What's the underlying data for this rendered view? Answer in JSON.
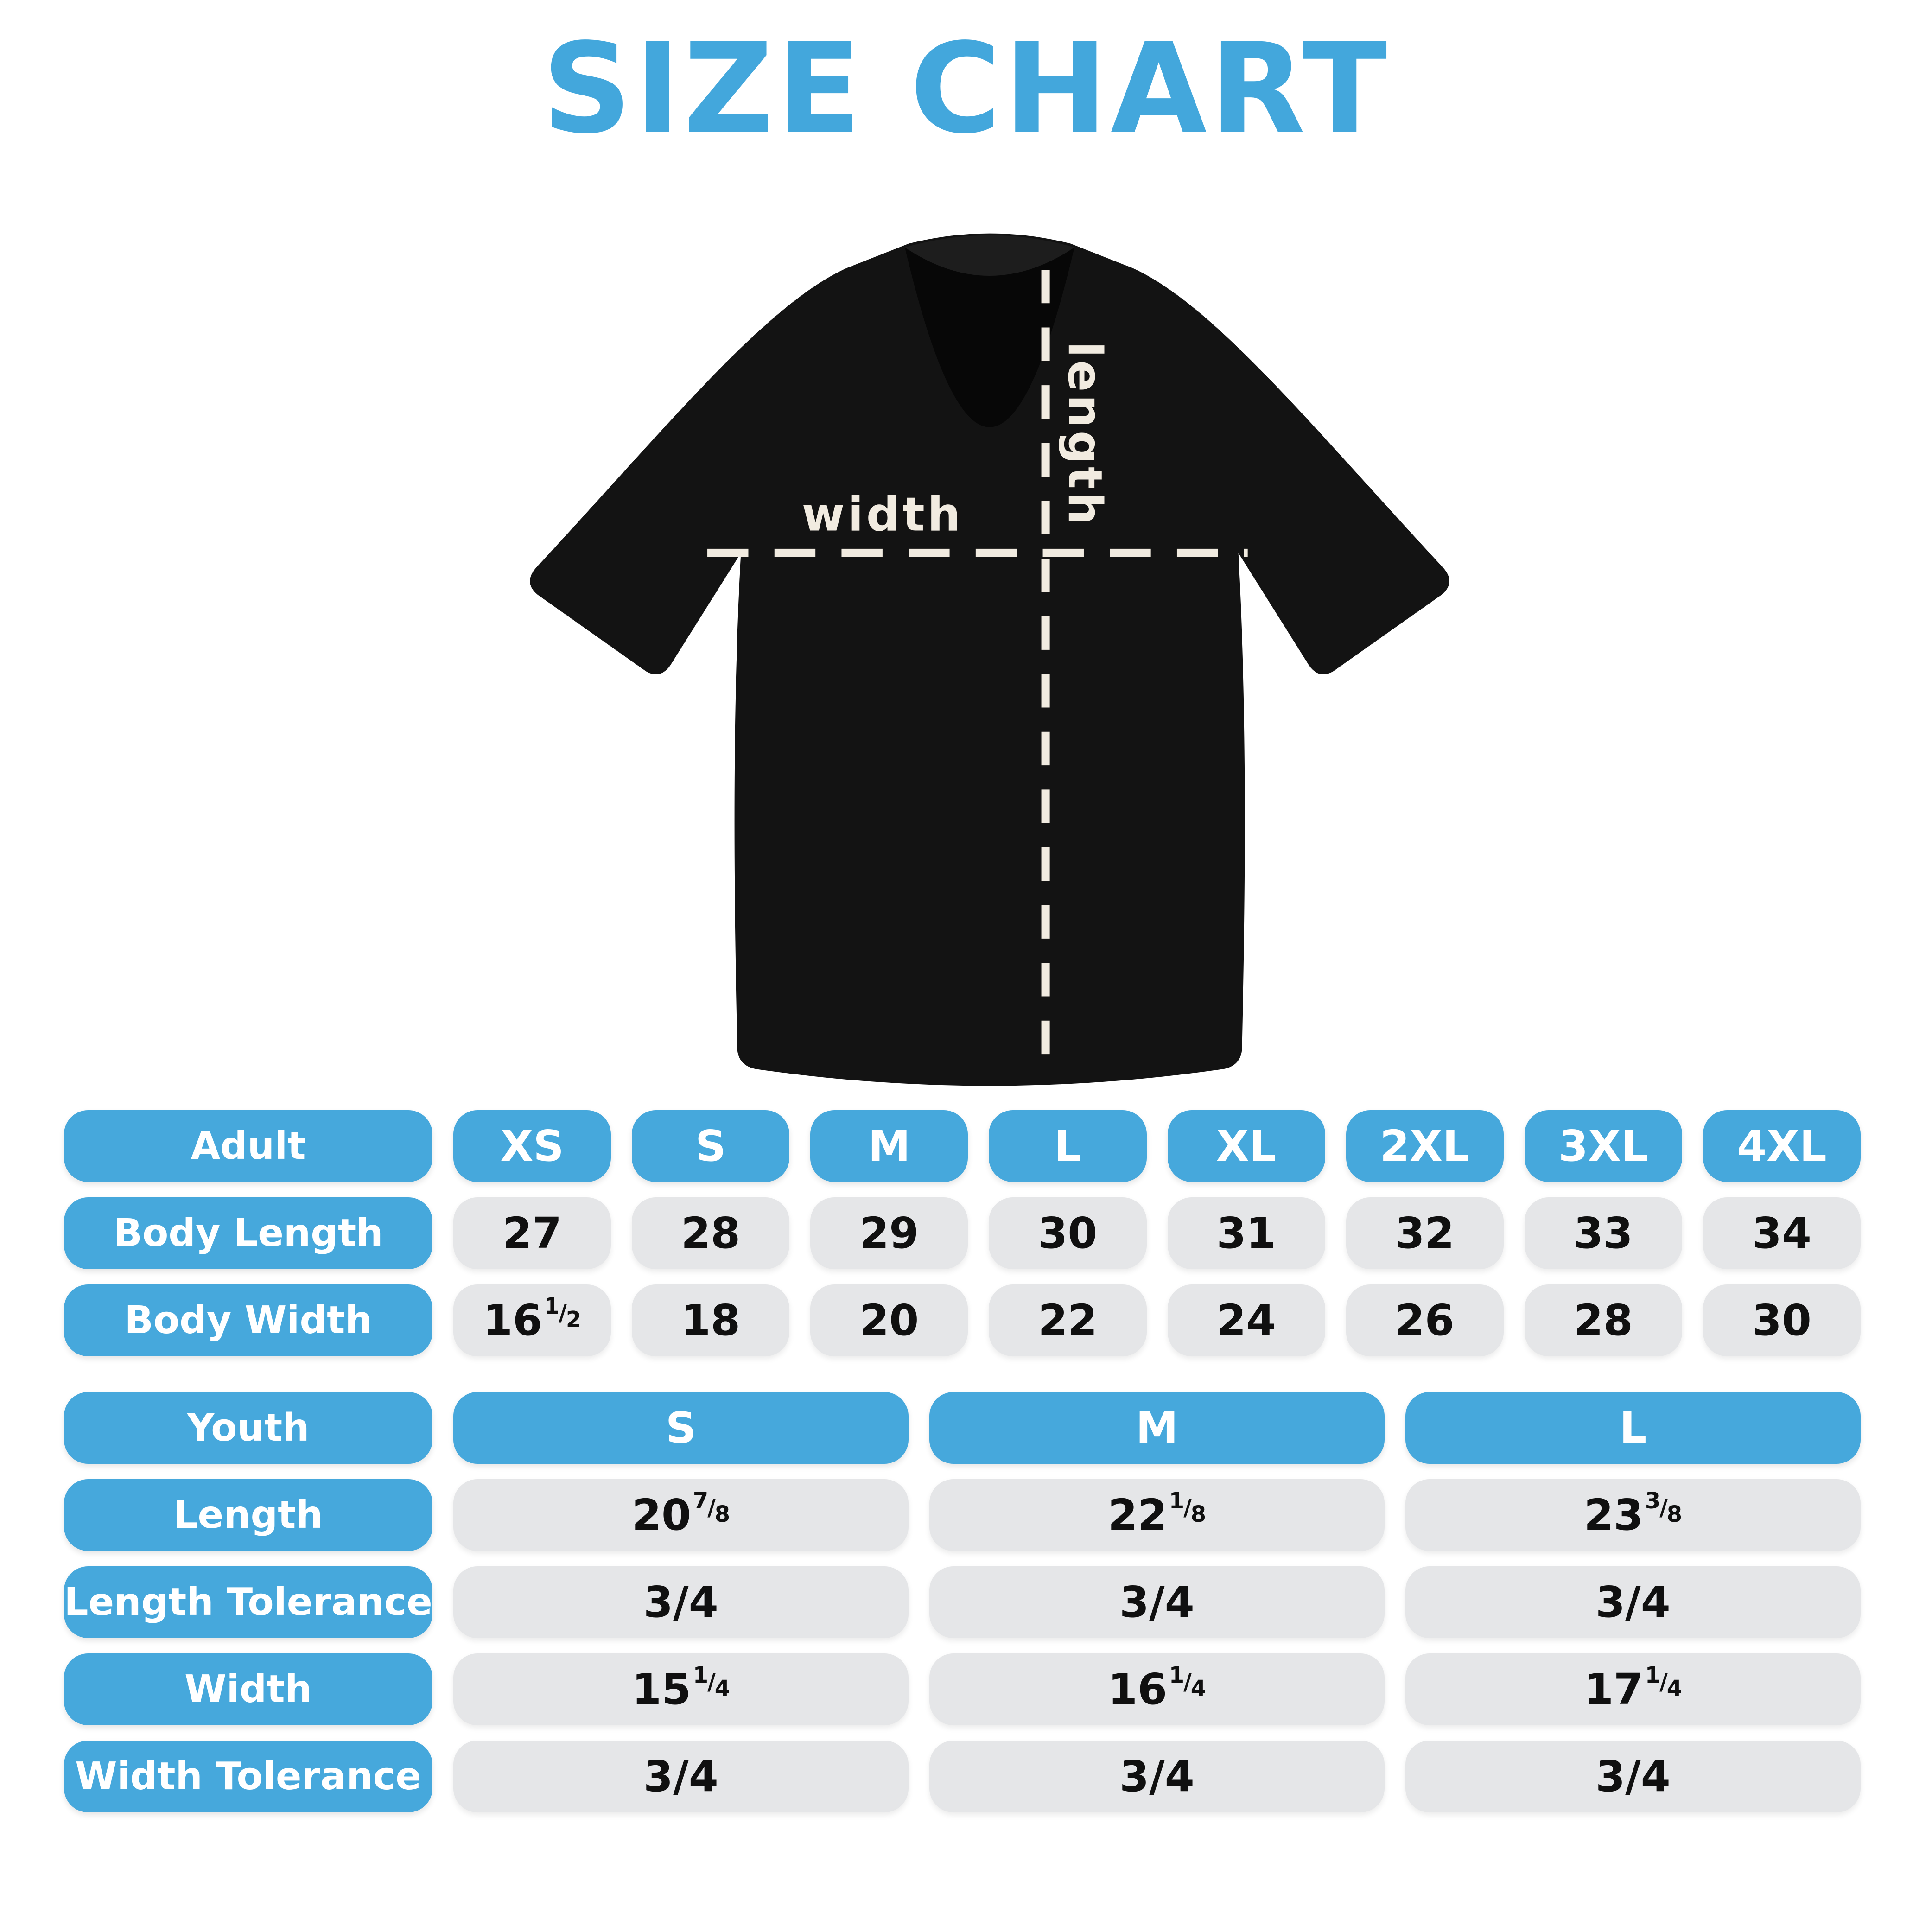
{
  "title": "SIZE CHART",
  "colors": {
    "accent_blue": "#46A8DC",
    "cell_gray": "#E5E6E8",
    "shirt_black": "#131313",
    "measure_line_cream": "#F1EBE0",
    "background": "#FFFFFF"
  },
  "shirt_diagram": {
    "width_label": "width",
    "length_label": "length"
  },
  "adult_table": {
    "label": "Adult",
    "sizes": [
      "XS",
      "S",
      "M",
      "L",
      "XL",
      "2XL",
      "3XL",
      "4XL"
    ],
    "rows": [
      {
        "label": "Body Length",
        "values": [
          "27",
          "28",
          "29",
          "30",
          "31",
          "32",
          "33",
          "34"
        ]
      },
      {
        "label": "Body Width",
        "values": [
          "16 1/2",
          "18",
          "20",
          "22",
          "24",
          "26",
          "28",
          "30"
        ]
      }
    ]
  },
  "youth_table": {
    "label": "Youth",
    "sizes": [
      "S",
      "M",
      "L"
    ],
    "rows": [
      {
        "label": "Length",
        "values": [
          "20 7/8",
          "22 1/8",
          "23 3/8"
        ]
      },
      {
        "label": "Length Tolerance",
        "values": [
          "3/4",
          "3/4",
          "3/4"
        ]
      },
      {
        "label": "Width",
        "values": [
          "15 1/4",
          "16 1/4",
          "17 1/4"
        ]
      },
      {
        "label": "Width Tolerance",
        "values": [
          "3/4",
          "3/4",
          "3/4"
        ]
      }
    ]
  }
}
